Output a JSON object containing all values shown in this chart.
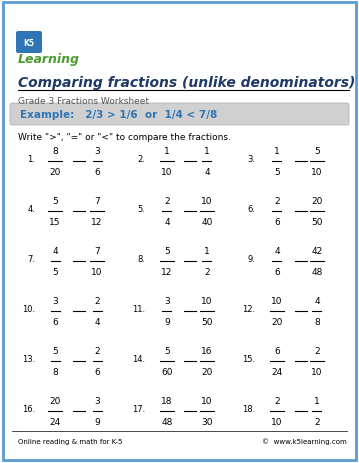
{
  "title": "Comparing fractions (unlike denominators)",
  "subtitle": "Grade 3 Fractions Worksheet",
  "example_text": "Example:   2/3 > 1/6  or  1/4 < 7/8",
  "instruction": "Write \">\", \"=\" or \"<\" to compare the fractions.",
  "border_color": "#5b9bd5",
  "title_color": "#1f3864",
  "subtitle_color": "#555555",
  "example_bg": "#d0d0d0",
  "example_color": "#2e75b6",
  "footer_left": "Online reading & math for K-5",
  "footer_right": "©  www.k5learning.com",
  "problems": [
    {
      "num": "1.",
      "n1": "8",
      "d1": "20",
      "n2": "3",
      "d2": "6"
    },
    {
      "num": "2.",
      "n1": "1",
      "d1": "10",
      "n2": "1",
      "d2": "4"
    },
    {
      "num": "3.",
      "n1": "1",
      "d1": "5",
      "n2": "5",
      "d2": "10"
    },
    {
      "num": "4.",
      "n1": "5",
      "d1": "15",
      "n2": "7",
      "d2": "12"
    },
    {
      "num": "5.",
      "n1": "2",
      "d1": "4",
      "n2": "10",
      "d2": "40"
    },
    {
      "num": "6.",
      "n1": "2",
      "d1": "6",
      "n2": "20",
      "d2": "50"
    },
    {
      "num": "7.",
      "n1": "4",
      "d1": "5",
      "n2": "7",
      "d2": "10"
    },
    {
      "num": "8.",
      "n1": "5",
      "d1": "12",
      "n2": "1",
      "d2": "2"
    },
    {
      "num": "9.",
      "n1": "4",
      "d1": "6",
      "n2": "42",
      "d2": "48"
    },
    {
      "num": "10.",
      "n1": "3",
      "d1": "6",
      "n2": "2",
      "d2": "4"
    },
    {
      "num": "11.",
      "n1": "3",
      "d1": "9",
      "n2": "10",
      "d2": "50"
    },
    {
      "num": "12.",
      "n1": "10",
      "d1": "20",
      "n2": "4",
      "d2": "8"
    },
    {
      "num": "13.",
      "n1": "5",
      "d1": "8",
      "n2": "2",
      "d2": "6"
    },
    {
      "num": "14.",
      "n1": "5",
      "d1": "60",
      "n2": "16",
      "d2": "20"
    },
    {
      "num": "15.",
      "n1": "6",
      "d1": "24",
      "n2": "2",
      "d2": "10"
    },
    {
      "num": "16.",
      "n1": "20",
      "d1": "24",
      "n2": "3",
      "d2": "9"
    },
    {
      "num": "17.",
      "n1": "18",
      "d1": "48",
      "n2": "10",
      "d2": "30"
    },
    {
      "num": "18.",
      "n1": "2",
      "d1": "10",
      "n2": "1",
      "d2": "2"
    }
  ]
}
